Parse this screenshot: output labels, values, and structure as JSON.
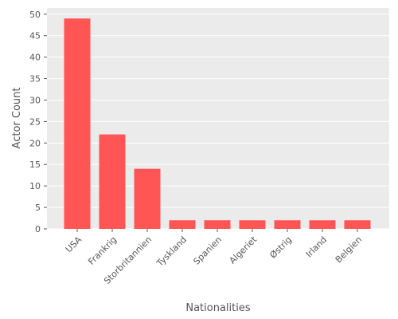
{
  "chart_data": {
    "type": "bar",
    "categories": [
      "USA",
      "Frankrig",
      "Storbritannien",
      "Tyskland",
      "Spanien",
      "Algeriet",
      "Østrig",
      "Irland",
      "Belgien"
    ],
    "values": [
      49,
      22,
      14,
      2,
      2,
      2,
      2,
      2,
      2
    ],
    "xlabel": "Nationalities",
    "ylabel": "Actor Count",
    "ylim": [
      0,
      51.45
    ],
    "yticks": [
      0,
      5,
      10,
      15,
      20,
      25,
      30,
      35,
      40,
      45,
      50
    ],
    "grid": true,
    "colors": {
      "bar": "#ff5555",
      "panel": "#ebebeb",
      "grid": "#ffffff",
      "text": "#555555"
    }
  }
}
